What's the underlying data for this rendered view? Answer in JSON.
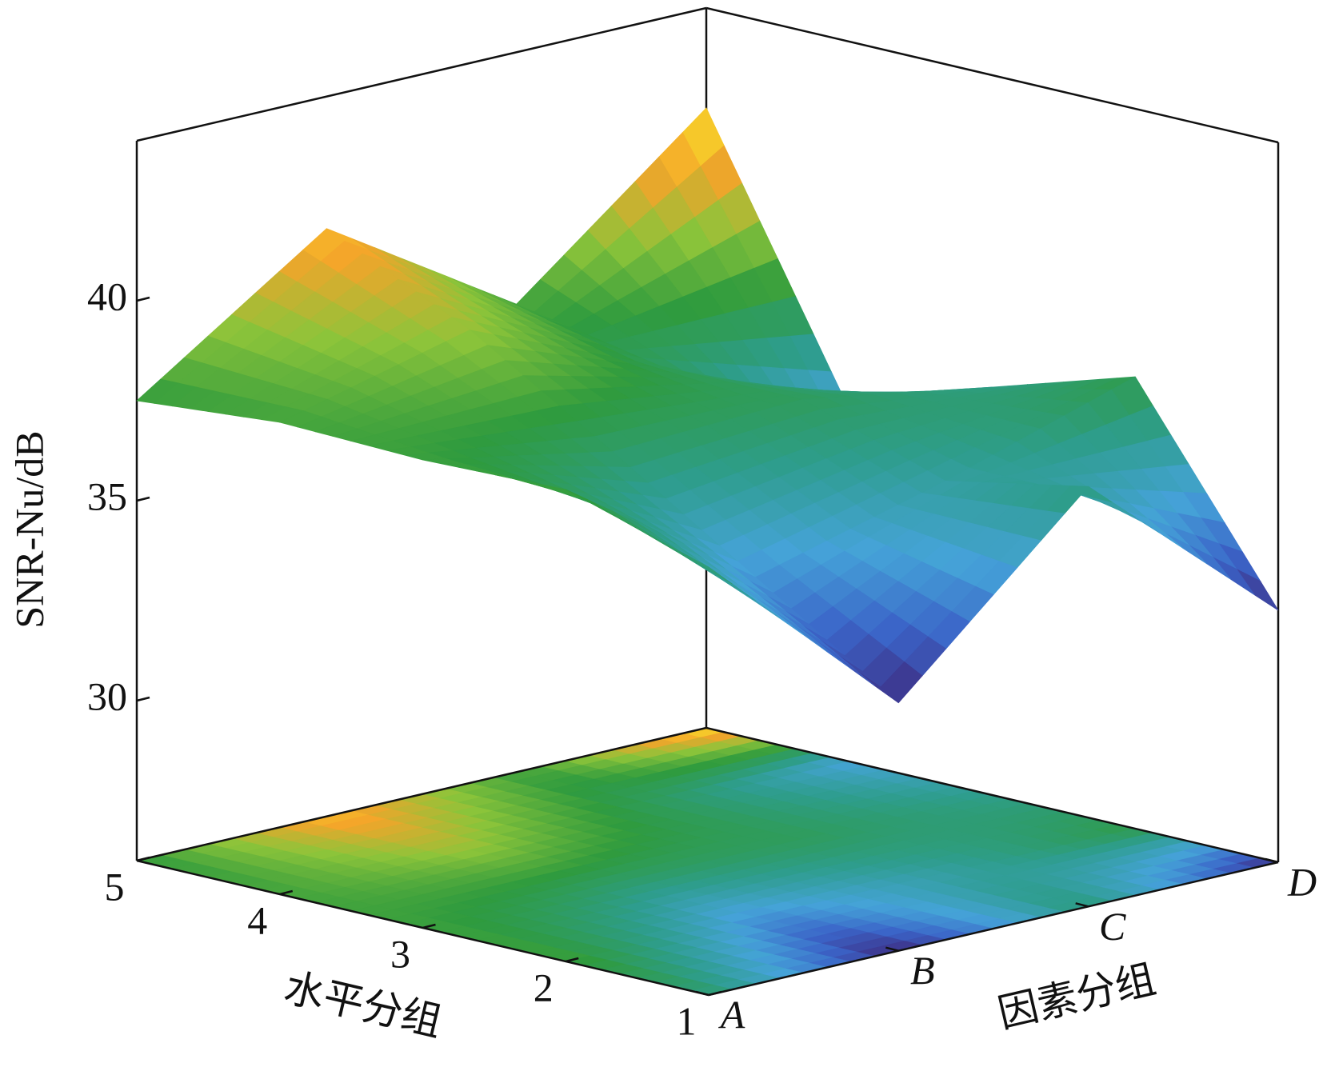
{
  "chart_data": {
    "type": "surface",
    "x_label": "水平分组",
    "y_label": "因素分组",
    "z_label": "SNR-Nu/dB",
    "x_categories": [
      1,
      2,
      3,
      4,
      5
    ],
    "y_categories": [
      "A",
      "B",
      "C",
      "D"
    ],
    "z": [
      [
        36.7,
        32.2,
        36.5,
        32.3
      ],
      [
        37.8,
        34.5,
        35.8,
        37.3
      ],
      [
        37.7,
        36.8,
        37.0,
        36.2
      ],
      [
        37.8,
        39.0,
        37.0,
        34.8
      ],
      [
        37.5,
        40.7,
        37.7,
        41.5
      ]
    ],
    "zlim": [
      26,
      44
    ],
    "zticks": [
      30,
      35,
      40
    ],
    "colormap": [
      "#3e2a7e",
      "#3b64c8",
      "#45a3d8",
      "#2e9d8c",
      "#2f9b3e",
      "#8cc43a",
      "#f4a42a",
      "#f8e82a"
    ],
    "floor_projection": true
  }
}
